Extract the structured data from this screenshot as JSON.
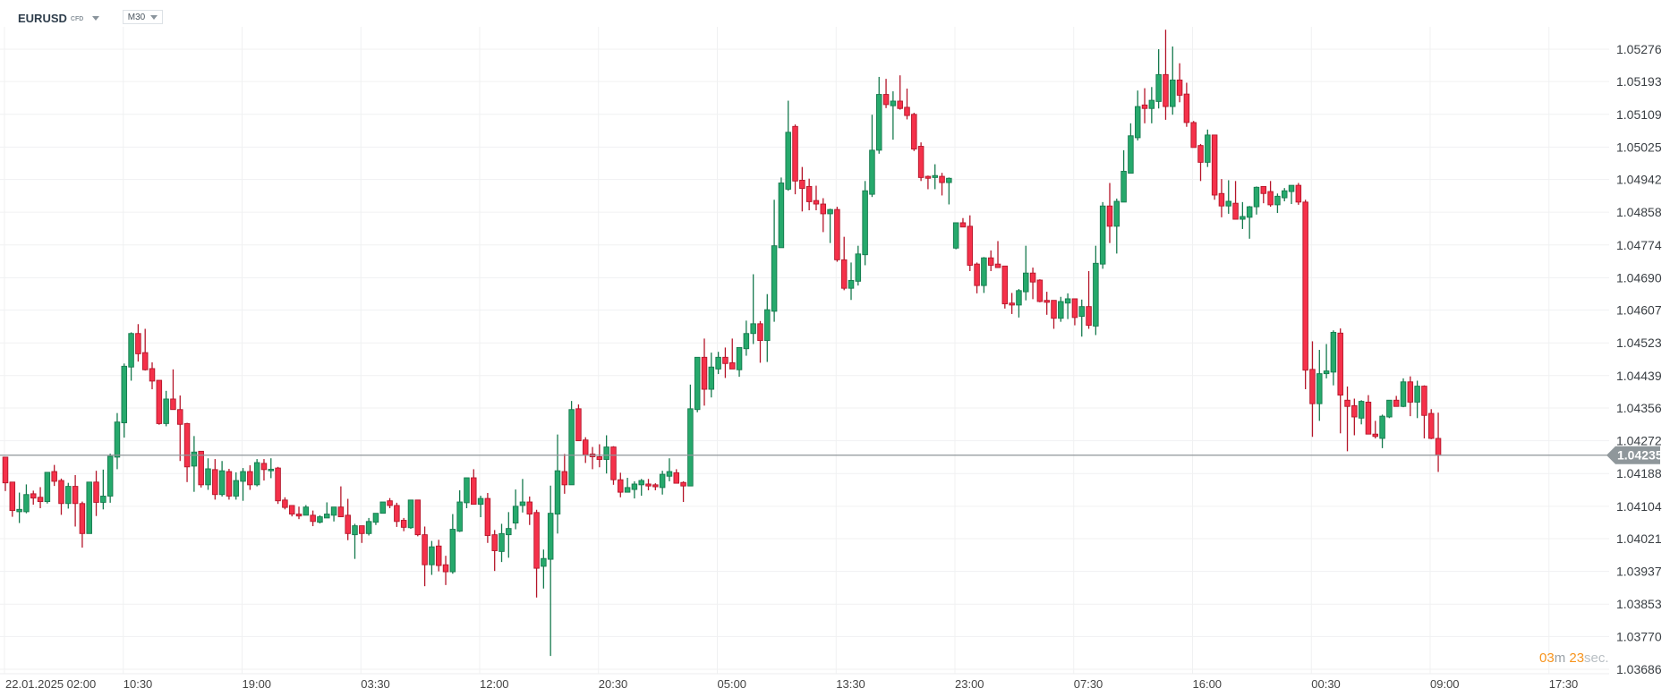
{
  "header": {
    "symbol": "EURUSD",
    "instrument_type": "CFD",
    "timeframe": "M30"
  },
  "countdown": {
    "minutes": "03",
    "minutes_unit": "m",
    "seconds": "23",
    "seconds_unit": "sec."
  },
  "colors": {
    "up": "#26a96c",
    "up_border": "#167a4e",
    "down": "#f5314a",
    "down_border": "#b5162a",
    "price_line": "#8f9499",
    "price_badge": "#8f979b",
    "countdown": "#f7941d"
  },
  "chart_data": {
    "type": "candlestick",
    "title": "",
    "format": "[open, high, low, close]",
    "interval": "M30",
    "ylim": [
      1.03686,
      1.05276
    ],
    "grid": true,
    "current_price": "1.04235",
    "y_ticks": [
      "1.05276",
      "1.05193",
      "1.05109",
      "1.05025",
      "1.04942",
      "1.04858",
      "1.04774",
      "1.04690",
      "1.04607",
      "1.04523",
      "1.04439",
      "1.04356",
      "1.04272",
      "1.04188",
      "1.04104",
      "1.04021",
      "1.03937",
      "1.03853",
      "1.03770",
      "1.03686"
    ],
    "x_ticks": [
      "22.01.2025  02:00",
      "10:30",
      "19:00",
      "03:30",
      "12:00",
      "20:30",
      "05:00",
      "13:30",
      "23:00",
      "07:30",
      "16:00",
      "00:30",
      "09:00",
      "17:30"
    ],
    "candles": [
      [
        1.0423,
        1.0423,
        1.04143,
        1.04164
      ],
      [
        1.04166,
        1.04166,
        1.04077,
        1.04093
      ],
      [
        1.0409,
        1.04139,
        1.04061,
        1.04096
      ],
      [
        1.0409,
        1.0416,
        1.04086,
        1.04134
      ],
      [
        1.04136,
        1.04144,
        1.04108,
        1.04125
      ],
      [
        1.04127,
        1.04153,
        1.04099,
        1.04116
      ],
      [
        1.04116,
        1.04191,
        1.04111,
        1.04191
      ],
      [
        1.04193,
        1.0421,
        1.04156,
        1.04168
      ],
      [
        1.0417,
        1.04175,
        1.04082,
        1.04111
      ],
      [
        1.04111,
        1.04164,
        1.04098,
        1.04155
      ],
      [
        1.04155,
        1.04184,
        1.04052,
        1.04111
      ],
      [
        1.04111,
        1.04116,
        1.03998,
        1.04034
      ],
      [
        1.04034,
        1.04166,
        1.04034,
        1.04166
      ],
      [
        1.04166,
        1.04195,
        1.04079,
        1.04114
      ],
      [
        1.04114,
        1.04198,
        1.04096,
        1.0413
      ],
      [
        1.0413,
        1.04239,
        1.04113,
        1.04232
      ],
      [
        1.0423,
        1.04343,
        1.04199,
        1.0432
      ],
      [
        1.04318,
        1.0447,
        1.0428,
        1.04463
      ],
      [
        1.04461,
        1.0455,
        1.04426,
        1.04547
      ],
      [
        1.04547,
        1.04571,
        1.04475,
        1.04495
      ],
      [
        1.04498,
        1.04559,
        1.04452,
        1.04454
      ],
      [
        1.04457,
        1.04473,
        1.04404,
        1.04425
      ],
      [
        1.04427,
        1.04427,
        1.04313,
        1.04316
      ],
      [
        1.04316,
        1.044,
        1.04309,
        1.04379
      ],
      [
        1.04379,
        1.04455,
        1.04352,
        1.04352
      ],
      [
        1.04352,
        1.04388,
        1.0422,
        1.04314
      ],
      [
        1.04316,
        1.04318,
        1.04166,
        1.04205
      ],
      [
        1.04207,
        1.04284,
        1.04141,
        1.04243
      ],
      [
        1.04245,
        1.04245,
        1.04152,
        1.04159
      ],
      [
        1.04159,
        1.04227,
        1.04146,
        1.042
      ],
      [
        1.04198,
        1.04225,
        1.04121,
        1.04134
      ],
      [
        1.04134,
        1.0422,
        1.04129,
        1.04195
      ],
      [
        1.04193,
        1.042,
        1.04121,
        1.0413
      ],
      [
        1.0413,
        1.04191,
        1.04121,
        1.0417
      ],
      [
        1.04168,
        1.04202,
        1.04118,
        1.04193
      ],
      [
        1.04193,
        1.04209,
        1.04146,
        1.04159
      ],
      [
        1.04159,
        1.04225,
        1.04155,
        1.04216
      ],
      [
        1.04214,
        1.04225,
        1.0417,
        1.04198
      ],
      [
        1.04195,
        1.04227,
        1.04176,
        1.04199
      ],
      [
        1.04202,
        1.04205,
        1.0411,
        1.04118
      ],
      [
        1.0412,
        1.04127,
        1.04096,
        1.04101
      ],
      [
        1.04106,
        1.04106,
        1.04078,
        1.04084
      ],
      [
        1.04084,
        1.04103,
        1.04071,
        1.04079
      ],
      [
        1.04081,
        1.04107,
        1.04081,
        1.04102
      ],
      [
        1.04081,
        1.04093,
        1.04053,
        1.04065
      ],
      [
        1.04063,
        1.04081,
        1.0406,
        1.04077
      ],
      [
        1.04074,
        1.04114,
        1.04074,
        1.04084
      ],
      [
        1.04081,
        1.04102,
        1.04065,
        1.04102
      ],
      [
        1.04102,
        1.04155,
        1.04077,
        1.04077
      ],
      [
        1.04081,
        1.04123,
        1.04017,
        1.04034
      ],
      [
        1.04031,
        1.04059,
        1.03969,
        1.04054
      ],
      [
        1.04054,
        1.04054,
        1.0401,
        1.04034
      ],
      [
        1.04034,
        1.04074,
        1.04029,
        1.04065
      ],
      [
        1.04063,
        1.04086,
        1.04056,
        1.04086
      ],
      [
        1.04086,
        1.04115,
        1.04086,
        1.04115
      ],
      [
        1.04118,
        1.04125,
        1.04099,
        1.04106
      ],
      [
        1.04106,
        1.04113,
        1.04051,
        1.04065
      ],
      [
        1.04068,
        1.04074,
        1.0404,
        1.0405
      ],
      [
        1.04049,
        1.0412,
        1.04046,
        1.0412
      ],
      [
        1.0412,
        1.0412,
        1.04027,
        1.04031
      ],
      [
        1.04031,
        1.04052,
        1.03899,
        1.03954
      ],
      [
        1.03954,
        1.04015,
        1.03928,
        1.04
      ],
      [
        1.04002,
        1.04018,
        1.03937,
        1.03952
      ],
      [
        1.03954,
        1.03977,
        1.03902,
        1.03936
      ],
      [
        1.03936,
        1.04084,
        1.03931,
        1.04045
      ],
      [
        1.0404,
        1.04145,
        1.04038,
        1.04115
      ],
      [
        1.04113,
        1.04177,
        1.04099,
        1.04177
      ],
      [
        1.04177,
        1.04199,
        1.04109,
        1.04109
      ],
      [
        1.04109,
        1.04131,
        1.04076,
        1.04124
      ],
      [
        1.04124,
        1.04138,
        1.0401,
        1.04029
      ],
      [
        1.04031,
        1.04043,
        1.03938,
        1.0399
      ],
      [
        1.03988,
        1.04059,
        1.03961,
        1.04034
      ],
      [
        1.04031,
        1.04089,
        1.03972,
        1.04047
      ],
      [
        1.04061,
        1.04147,
        1.04045,
        1.04104
      ],
      [
        1.04106,
        1.04174,
        1.04088,
        1.04115
      ],
      [
        1.04115,
        1.04129,
        1.04056,
        1.04084
      ],
      [
        1.04088,
        1.04095,
        1.0387,
        1.03945
      ],
      [
        1.0395,
        1.03993,
        1.03893,
        1.0397
      ],
      [
        1.03968,
        1.04157,
        1.0372,
        1.04086
      ],
      [
        1.04084,
        1.04288,
        1.04034,
        1.04195
      ],
      [
        1.04193,
        1.04238,
        1.04136,
        1.04159
      ],
      [
        1.04159,
        1.04374,
        1.04159,
        1.04352
      ],
      [
        1.04354,
        1.04365,
        1.04272,
        1.04272
      ],
      [
        1.04274,
        1.04281,
        1.04215,
        1.04236
      ],
      [
        1.04238,
        1.04256,
        1.04199,
        1.04231
      ],
      [
        1.04231,
        1.04263,
        1.04204,
        1.04224
      ],
      [
        1.04224,
        1.04286,
        1.04188,
        1.04256
      ],
      [
        1.04256,
        1.04258,
        1.04159,
        1.04172
      ],
      [
        1.04172,
        1.0419,
        1.04127,
        1.0414
      ],
      [
        1.0414,
        1.04177,
        1.0414,
        1.04152
      ],
      [
        1.04147,
        1.04168,
        1.04124,
        1.04161
      ],
      [
        1.04159,
        1.04174,
        1.04131,
        1.0417
      ],
      [
        1.04161,
        1.04174,
        1.04145,
        1.04156
      ],
      [
        1.04159,
        1.04163,
        1.04145,
        1.04154
      ],
      [
        1.04152,
        1.04195,
        1.04134,
        1.04186
      ],
      [
        1.04181,
        1.04227,
        1.04168,
        1.04193
      ],
      [
        1.0419,
        1.04199,
        1.04163,
        1.04163
      ],
      [
        1.04165,
        1.04168,
        1.04115,
        1.04156
      ],
      [
        1.04156,
        1.04416,
        1.04156,
        1.04354
      ],
      [
        1.04352,
        1.04486,
        1.04345,
        1.04486
      ],
      [
        1.04486,
        1.04534,
        1.04362,
        1.04404
      ],
      [
        1.04404,
        1.04498,
        1.04383,
        1.04461
      ],
      [
        1.04456,
        1.045,
        1.04443,
        1.04486
      ],
      [
        1.04486,
        1.04511,
        1.04433,
        1.0447
      ],
      [
        1.04472,
        1.04534,
        1.04456,
        1.04456
      ],
      [
        1.04454,
        1.04511,
        1.04436,
        1.04511
      ],
      [
        1.04508,
        1.0458,
        1.0449,
        1.04547
      ],
      [
        1.04547,
        1.04699,
        1.0452,
        1.04572
      ],
      [
        1.04572,
        1.04579,
        1.04472,
        1.04529
      ],
      [
        1.04529,
        1.04648,
        1.04474,
        1.04608
      ],
      [
        1.04604,
        1.0489,
        1.04577,
        1.04772
      ],
      [
        1.04767,
        1.04947,
        1.04767,
        1.04933
      ],
      [
        1.04917,
        1.05144,
        1.04913,
        1.05063
      ],
      [
        1.05078,
        1.05083,
        1.04904,
        1.04938
      ],
      [
        1.0494,
        1.04974,
        1.0486,
        1.04919
      ],
      [
        1.04924,
        1.04944,
        1.04863,
        1.04885
      ],
      [
        1.04888,
        1.04926,
        1.04863,
        1.04879
      ],
      [
        1.04879,
        1.04894,
        1.04807,
        1.04854
      ],
      [
        1.04854,
        1.04867,
        1.04779,
        1.04865
      ],
      [
        1.04865,
        1.04872,
        1.04731,
        1.04736
      ],
      [
        1.04736,
        1.04795,
        1.04658,
        1.04663
      ],
      [
        1.04663,
        1.04729,
        1.04633,
        1.04683
      ],
      [
        1.04681,
        1.04772,
        1.0467,
        1.04751
      ],
      [
        1.04749,
        1.04938,
        1.04722,
        1.04913
      ],
      [
        1.04904,
        1.05108,
        1.04897,
        1.05017
      ],
      [
        1.05017,
        1.05205,
        1.05008,
        1.0516
      ],
      [
        1.0516,
        1.052,
        1.05125,
        1.05134
      ],
      [
        1.05131,
        1.05168,
        1.05044,
        1.05143
      ],
      [
        1.05143,
        1.05209,
        1.05121,
        1.05124
      ],
      [
        1.05127,
        1.05175,
        1.05096,
        1.05106
      ],
      [
        1.05109,
        1.05113,
        1.05015,
        1.0502
      ],
      [
        1.05027,
        1.05037,
        1.04938,
        1.04947
      ],
      [
        1.0495,
        1.04952,
        1.04917,
        1.04945
      ],
      [
        1.04947,
        1.04981,
        1.04917,
        1.04952
      ],
      [
        1.0495,
        1.04959,
        1.04901,
        1.04934
      ],
      [
        1.04934,
        1.04947,
        1.04878,
        1.04945
      ],
      [
        1.04766,
        1.04831,
        1.04763,
        1.04831
      ],
      [
        1.04831,
        1.04843,
        1.0482,
        1.0482
      ],
      [
        1.04822,
        1.0485,
        1.04707,
        1.04722
      ],
      [
        1.04725,
        1.04729,
        1.0465,
        1.0467
      ],
      [
        1.0467,
        1.04743,
        1.04651,
        1.04741
      ],
      [
        1.04741,
        1.0476,
        1.04707,
        1.04722
      ],
      [
        1.04725,
        1.04784,
        1.04716,
        1.04716
      ],
      [
        1.0472,
        1.0472,
        1.04611,
        1.04623
      ],
      [
        1.04625,
        1.04651,
        1.04597,
        1.0462
      ],
      [
        1.0462,
        1.04661,
        1.04588,
        1.04657
      ],
      [
        1.04654,
        1.04772,
        1.04632,
        1.04702
      ],
      [
        1.04702,
        1.04716,
        1.04635,
        1.04679
      ],
      [
        1.04684,
        1.04686,
        1.04627,
        1.04629
      ],
      [
        1.04632,
        1.04654,
        1.04595,
        1.04627
      ],
      [
        1.04632,
        1.04632,
        1.04559,
        1.04586
      ],
      [
        1.04586,
        1.04641,
        1.04577,
        1.04629
      ],
      [
        1.04625,
        1.0465,
        1.04584,
        1.04636
      ],
      [
        1.04636,
        1.04636,
        1.04568,
        1.04588
      ],
      [
        1.04591,
        1.04634,
        1.04539,
        1.04616
      ],
      [
        1.04616,
        1.04707,
        1.04559,
        1.04568
      ],
      [
        1.04566,
        1.04772,
        1.04543,
        1.04727
      ],
      [
        1.04725,
        1.04884,
        1.04713,
        1.04874
      ],
      [
        1.04874,
        1.04933,
        1.04779,
        1.04822
      ],
      [
        1.04822,
        1.04893,
        1.04752,
        1.04886
      ],
      [
        1.04884,
        1.05017,
        1.04884,
        1.04963
      ],
      [
        1.04958,
        1.05086,
        1.04958,
        1.05054
      ],
      [
        1.05049,
        1.0517,
        1.05042,
        1.05129
      ],
      [
        1.05133,
        1.05176,
        1.05086,
        1.05124
      ],
      [
        1.05124,
        1.05179,
        1.05086,
        1.05145
      ],
      [
        1.05142,
        1.05276,
        1.05124,
        1.05211
      ],
      [
        1.05211,
        1.05326,
        1.05095,
        1.05129
      ],
      [
        1.05129,
        1.05283,
        1.05108,
        1.05197
      ],
      [
        1.05197,
        1.0524,
        1.0514,
        1.05158
      ],
      [
        1.05161,
        1.0519,
        1.05077,
        1.05088
      ],
      [
        1.05088,
        1.05092,
        1.05024,
        1.05024
      ],
      [
        1.05029,
        1.05033,
        1.04938,
        1.04986
      ],
      [
        1.04986,
        1.0507,
        1.04974,
        1.05056
      ],
      [
        1.05056,
        1.05056,
        1.0489,
        1.04902
      ],
      [
        1.04906,
        1.04943,
        1.04845,
        1.04874
      ],
      [
        1.04874,
        1.0494,
        1.04854,
        1.04886
      ],
      [
        1.04881,
        1.04938,
        1.0484,
        1.0484
      ],
      [
        1.0484,
        1.04884,
        1.04815,
        1.04847
      ],
      [
        1.04845,
        1.04874,
        1.0479,
        1.04872
      ],
      [
        1.04872,
        1.04924,
        1.04852,
        1.04922
      ],
      [
        1.04924,
        1.04924,
        1.04881,
        1.04906
      ],
      [
        1.04911,
        1.04938,
        1.04872,
        1.04877
      ],
      [
        1.04877,
        1.04906,
        1.04856,
        1.04899
      ],
      [
        1.04895,
        1.0492,
        1.04886,
        1.04913
      ],
      [
        1.04911,
        1.04927,
        1.04879,
        1.04927
      ],
      [
        1.04927,
        1.04933,
        1.04877,
        1.04884
      ],
      [
        1.04884,
        1.0489,
        1.04404,
        1.04453
      ],
      [
        1.04455,
        1.04527,
        1.04282,
        1.04367
      ],
      [
        1.04367,
        1.04505,
        1.04323,
        1.04444
      ],
      [
        1.04444,
        1.0452,
        1.04432,
        1.04451
      ],
      [
        1.04448,
        1.04555,
        1.04414,
        1.0455
      ],
      [
        1.04548,
        1.0456,
        1.04291,
        1.04389
      ],
      [
        1.04376,
        1.04411,
        1.04245,
        1.0436
      ],
      [
        1.04362,
        1.0438,
        1.04286,
        1.04333
      ],
      [
        1.0433,
        1.04376,
        1.04314,
        1.04373
      ],
      [
        1.04371,
        1.04389,
        1.04289,
        1.04289
      ],
      [
        1.04289,
        1.04323,
        1.04278,
        1.04283
      ],
      [
        1.04278,
        1.04339,
        1.04253,
        1.04335
      ],
      [
        1.04333,
        1.04376,
        1.0433,
        1.04376
      ],
      [
        1.04376,
        1.04387,
        1.0436,
        1.0436
      ],
      [
        1.0436,
        1.04432,
        1.04358,
        1.04423
      ],
      [
        1.04423,
        1.04437,
        1.04335,
        1.04371
      ],
      [
        1.04371,
        1.04426,
        1.0433,
        1.04412
      ],
      [
        1.04412,
        1.04414,
        1.04278,
        1.04337
      ],
      [
        1.04342,
        1.04353,
        1.04276,
        1.04278
      ],
      [
        1.04278,
        1.04344,
        1.04192,
        1.04235
      ]
    ]
  }
}
